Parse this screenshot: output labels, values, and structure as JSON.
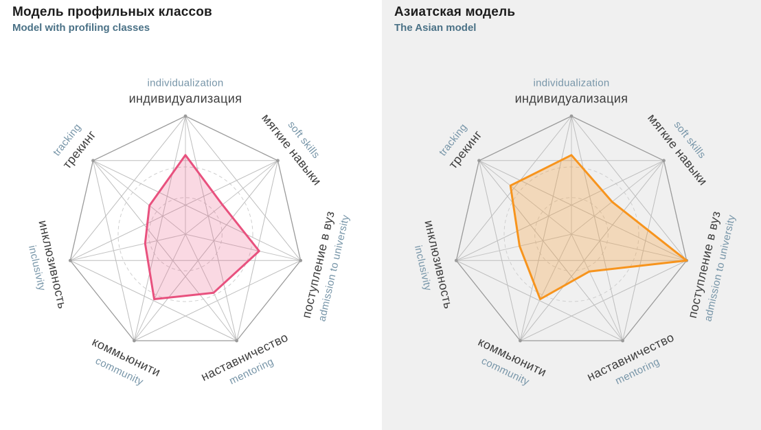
{
  "panels": [
    {
      "title": "Модель профильных классов",
      "subtitle": "Model with profiling classes"
    },
    {
      "title": "Азиатская модель",
      "subtitle": "The Asian model"
    }
  ],
  "colors": {
    "title": "#1c1c1c",
    "subtitle": "#4a7186",
    "axis_label_ru": "#3d3d3d",
    "axis_label_en": "#7795a8",
    "grid_outer": "#9a9a9a",
    "grid_inner": "#bdbdbd",
    "pink_accent": "#e8517e",
    "orange_accent": "#f7941d"
  },
  "chart_data": [
    {
      "type": "radar",
      "title": "Модель профильных классов",
      "subtitle": "Model with profiling classes",
      "range": [
        0,
        1
      ],
      "grid_rings": [
        0.31,
        0.57
      ],
      "axes": [
        {
          "ru": "индивидуализация",
          "en": "individualization"
        },
        {
          "ru": "мягкие навыки",
          "en": "soft skills"
        },
        {
          "ru": "поступление в вуз",
          "en": "admission to university"
        },
        {
          "ru": "наставничество",
          "en": "mentoring"
        },
        {
          "ru": "коммьюнити",
          "en": "community"
        },
        {
          "ru": "инклюзивность",
          "en": "inclusivity"
        },
        {
          "ru": "трекинг",
          "en": "tracking"
        }
      ],
      "values": [
        0.67,
        0.4,
        0.64,
        0.55,
        0.61,
        0.35,
        0.39
      ],
      "stroke": "#e8517e",
      "fill": "rgba(232,81,126,0.22)"
    },
    {
      "type": "radar",
      "title": "Азиатская модель",
      "subtitle": "The Asian model",
      "range": [
        0,
        1
      ],
      "grid_rings": [
        0.31,
        0.57
      ],
      "axes": [
        {
          "ru": "индивидуализация",
          "en": "individualization"
        },
        {
          "ru": "мягкие навыки",
          "en": "soft skills"
        },
        {
          "ru": "поступление в вуз",
          "en": "admission to university"
        },
        {
          "ru": "наставничество",
          "en": "mentoring"
        },
        {
          "ru": "коммьюнити",
          "en": "community"
        },
        {
          "ru": "инклюзивность",
          "en": "inclusivity"
        },
        {
          "ru": "трекинг",
          "en": "tracking"
        }
      ],
      "values": [
        0.67,
        0.44,
        1.0,
        0.35,
        0.61,
        0.45,
        0.66
      ],
      "stroke": "#f7941d",
      "fill": "rgba(247,148,29,0.26)"
    }
  ]
}
